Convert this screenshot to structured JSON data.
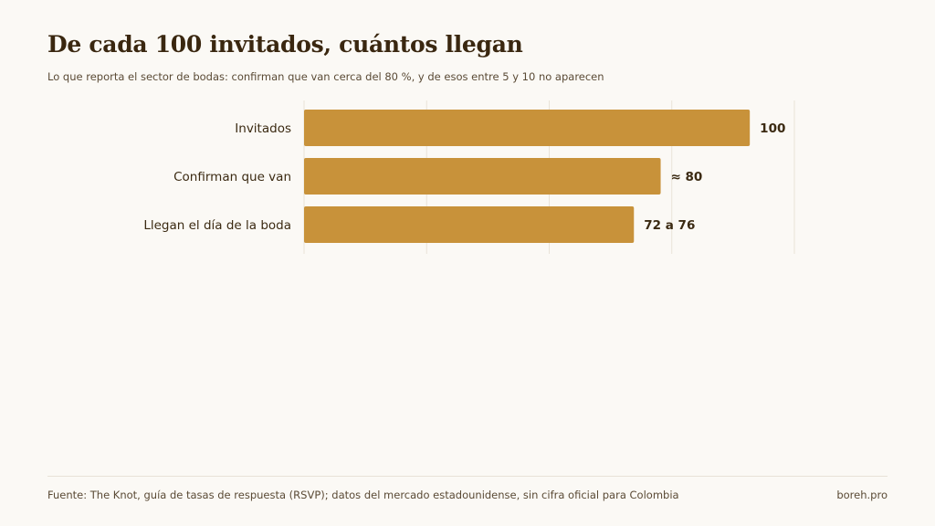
{
  "header": {
    "title": "De cada 100 invitados, cuántos llegan",
    "subtitle": "Lo que reporta el sector de bodas: confirman que van cerca del 80 %, y de esos entre 5 y 10 no aparecen"
  },
  "footer": {
    "source": "Fuente: The Knot, guía de tasas de respuesta (RSVP); datos del mercado estadounidense, sin cifra oficial para Colombia",
    "brand": "boreh.pro"
  },
  "colors": {
    "bar": "#c8923a",
    "grid": "#e9e3d8",
    "text": "#3b2a12"
  },
  "chart_data": {
    "type": "bar",
    "orientation": "horizontal",
    "title": "De cada 100 invitados, cuántos llegan",
    "subtitle": "Lo que reporta el sector de bodas: confirman que van cerca del 80 %, y de esos entre 5 y 10 no aparecen",
    "categories": [
      "Invitados",
      "Confirman que van",
      "Llegan el día de la boda"
    ],
    "values": [
      100,
      80,
      74
    ],
    "data_labels": [
      "100",
      "≈ 80",
      "72 a 76"
    ],
    "xlim": [
      0,
      110
    ],
    "grid": true,
    "xlabel": "",
    "ylabel": ""
  }
}
